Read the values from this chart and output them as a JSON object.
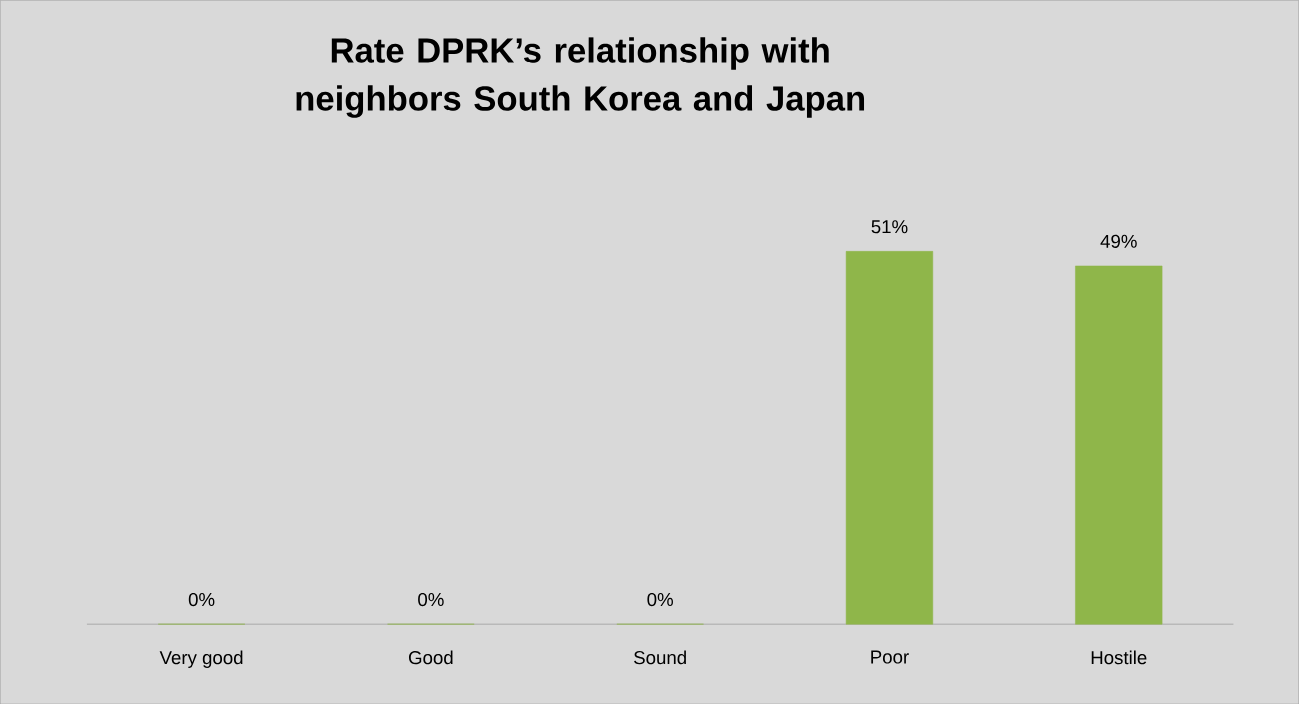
{
  "chart_data": {
    "type": "bar",
    "title": "Rate DPRK’s relationship with neighbors South Korea and Japan",
    "categories": [
      "Very good",
      "Good",
      "Sound",
      "Poor",
      "Hostile"
    ],
    "values": [
      0,
      0,
      0,
      51,
      49
    ],
    "value_labels": [
      "0%",
      "0%",
      "0%",
      "51%",
      "49%"
    ],
    "color": "#8fb64a"
  }
}
